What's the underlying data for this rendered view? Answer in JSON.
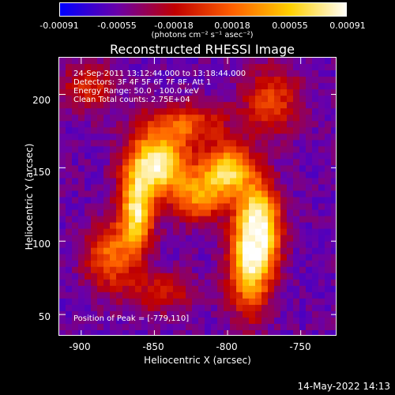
{
  "colorbar": {
    "tick_labels": [
      "-0.00091",
      "-0.00055",
      "-0.00018",
      "0.00018",
      "0.00055",
      "0.00091"
    ],
    "unit_label": "(photons cm⁻² s⁻¹ asec⁻²)",
    "stops": [
      "#0000ff",
      "#6a00a8",
      "#c00000",
      "#ff6000",
      "#ffd000",
      "#ffffff"
    ]
  },
  "chart_data": {
    "type": "heatmap",
    "title": "Reconstructed RHESSI Image",
    "xlabel": "Heliocentric X (arcsec)",
    "ylabel": "Heliocentric Y (arcsec)",
    "xlim": [
      -915,
      -725
    ],
    "ylim": [
      35,
      225
    ],
    "xticks": [
      "-900",
      "-850",
      "-800",
      "-750"
    ],
    "xtick_values": [
      -900,
      -850,
      -800,
      -750
    ],
    "yticks": [
      "50",
      "100",
      "150",
      "200"
    ],
    "ytick_values": [
      50,
      100,
      150,
      200
    ],
    "annotations": [
      "24-Sep-2011 13:12:44.000 to 13:18:44.000",
      "Detectors: 3F 4F 5F 6F 7F 8F, Att 1",
      "Energy Range: 50.0 - 100.0 keV",
      "Clean     Total counts: 2.75E+04"
    ],
    "peak_label": "Position of Peak = [-779,110]",
    "peak_position": [
      -779,
      110
    ],
    "sources": [
      {
        "x": -779,
        "y": 110,
        "amp": 1.0,
        "sx": 10,
        "sy": 20
      },
      {
        "x": -848,
        "y": 152,
        "amp": 0.95,
        "sx": 14,
        "sy": 14
      },
      {
        "x": -862,
        "y": 120,
        "amp": 0.85,
        "sx": 8,
        "sy": 18
      },
      {
        "x": -800,
        "y": 148,
        "amp": 0.8,
        "sx": 12,
        "sy": 12
      },
      {
        "x": -785,
        "y": 80,
        "amp": 0.65,
        "sx": 10,
        "sy": 22
      },
      {
        "x": -820,
        "y": 130,
        "amp": 0.55,
        "sx": 12,
        "sy": 12
      },
      {
        "x": -880,
        "y": 90,
        "amp": 0.5,
        "sx": 12,
        "sy": 16
      },
      {
        "x": -830,
        "y": 180,
        "amp": 0.45,
        "sx": 20,
        "sy": 10
      },
      {
        "x": -895,
        "y": 205,
        "amp": 0.35,
        "sx": 12,
        "sy": 12
      },
      {
        "x": -770,
        "y": 195,
        "amp": 0.4,
        "sx": 14,
        "sy": 16
      },
      {
        "x": -845,
        "y": 65,
        "amp": 0.3,
        "sx": 16,
        "sy": 10
      }
    ]
  },
  "timestamp": "14-May-2022 14:13"
}
